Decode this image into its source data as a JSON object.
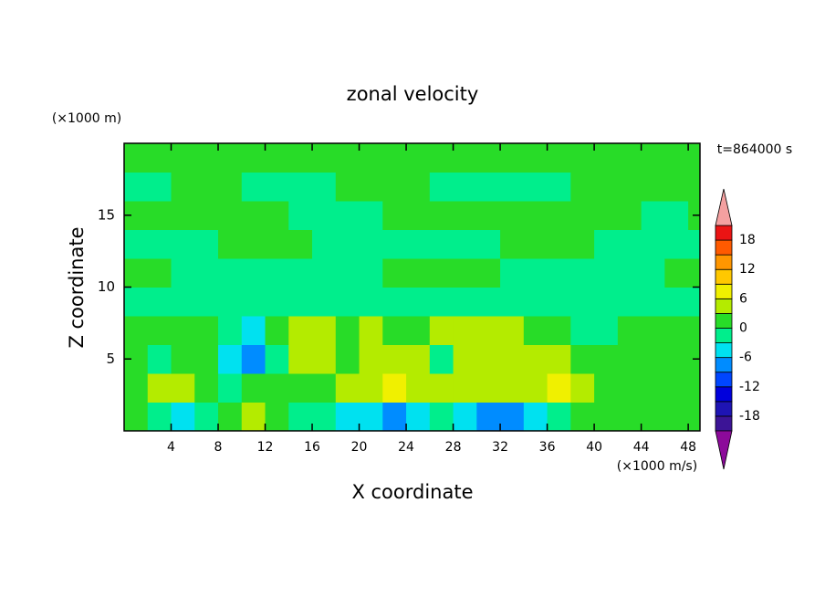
{
  "chart_data": {
    "type": "contour",
    "title": "zonal velocity",
    "xlabel": "X coordinate",
    "ylabel": "Z coordinate",
    "x_unit": "(×1000 m/s)",
    "y_unit": "(×1000 m)",
    "annotation": "t=864000 s",
    "xlim": [
      0,
      49
    ],
    "ylim": [
      0,
      20
    ],
    "xticks": [
      4,
      8,
      12,
      16,
      20,
      24,
      28,
      32,
      36,
      40,
      44,
      48
    ],
    "yticks": [
      5,
      10,
      15
    ],
    "x": [
      1,
      3,
      5,
      7,
      9,
      11,
      13,
      15,
      17,
      19,
      21,
      23,
      25,
      27,
      29,
      31,
      33,
      35,
      37,
      39,
      41,
      43,
      45,
      47,
      49
    ],
    "y": [
      1,
      3,
      5,
      7,
      9,
      11,
      13,
      15,
      17,
      19
    ],
    "z": [
      [
        1,
        -1,
        -4,
        -1,
        1,
        4,
        1,
        -1,
        -1,
        -4,
        -4,
        -7,
        -4,
        -1,
        -4,
        -7,
        -7,
        -4,
        -1,
        1,
        1,
        1,
        1,
        1,
        1
      ],
      [
        1,
        4,
        4,
        1,
        -1,
        1,
        1,
        1,
        1,
        4,
        4,
        7,
        4,
        4,
        4,
        4,
        4,
        4,
        7,
        4,
        1,
        1,
        1,
        1,
        1
      ],
      [
        1,
        -1,
        1,
        1,
        -4,
        -7,
        -1,
        4,
        4,
        1,
        4,
        4,
        4,
        -1,
        4,
        4,
        4,
        4,
        4,
        1,
        1,
        1,
        1,
        1,
        1
      ],
      [
        1,
        1,
        1,
        1,
        -1,
        -4,
        1,
        4,
        4,
        1,
        4,
        1,
        1,
        4,
        4,
        4,
        4,
        1,
        1,
        -1,
        -1,
        1,
        1,
        1,
        1
      ],
      [
        -1,
        -1,
        -1,
        -1,
        -1,
        -1,
        -1,
        -1,
        -1,
        -1,
        -1,
        -1,
        -1,
        -1,
        -1,
        -1,
        -1,
        -1,
        -1,
        -1,
        -1,
        -1,
        -1,
        -1,
        -1
      ],
      [
        1,
        1,
        -1,
        -1,
        -1,
        -1,
        -1,
        -1,
        -1,
        -1,
        -1,
        1,
        1,
        1,
        1,
        1,
        -1,
        -1,
        -1,
        -1,
        -1,
        -1,
        -1,
        1,
        1
      ],
      [
        -1,
        -1,
        -1,
        -1,
        1,
        1,
        1,
        1,
        -1,
        -1,
        -1,
        -1,
        -1,
        -1,
        -1,
        -1,
        1,
        1,
        1,
        1,
        -1,
        -1,
        -1,
        -1,
        -1
      ],
      [
        1,
        1,
        1,
        1,
        1,
        1,
        1,
        -1,
        -1,
        -1,
        -1,
        1,
        1,
        1,
        1,
        1,
        1,
        1,
        1,
        1,
        1,
        1,
        -1,
        -1,
        1
      ],
      [
        -1,
        -1,
        1,
        1,
        1,
        -1,
        -1,
        -1,
        -1,
        1,
        1,
        1,
        1,
        -1,
        -1,
        -1,
        -1,
        -1,
        -1,
        1,
        1,
        1,
        1,
        1,
        1
      ],
      [
        1,
        1,
        1,
        1,
        1,
        1,
        1,
        1,
        1,
        1,
        1,
        1,
        1,
        1,
        1,
        1,
        1,
        1,
        1,
        1,
        1,
        1,
        1,
        1,
        1
      ]
    ],
    "levels": [
      -21,
      -18,
      -15,
      -12,
      -9,
      -6,
      -3,
      0,
      3,
      6,
      9,
      12,
      15,
      18,
      21
    ],
    "colors": [
      "#3c1496",
      "#1e14b4",
      "#0000dc",
      "#0046ff",
      "#008cff",
      "#00e1f0",
      "#00ee8c",
      "#28dc28",
      "#b4eb00",
      "#f0f000",
      "#ffc800",
      "#ff9600",
      "#ff5a00",
      "#eb1414"
    ],
    "under_color": "#8c0a9a",
    "over_color": "#f4a0a0",
    "colorbar_ticks": [
      -18,
      -12,
      -6,
      0,
      6,
      12,
      18
    ]
  }
}
